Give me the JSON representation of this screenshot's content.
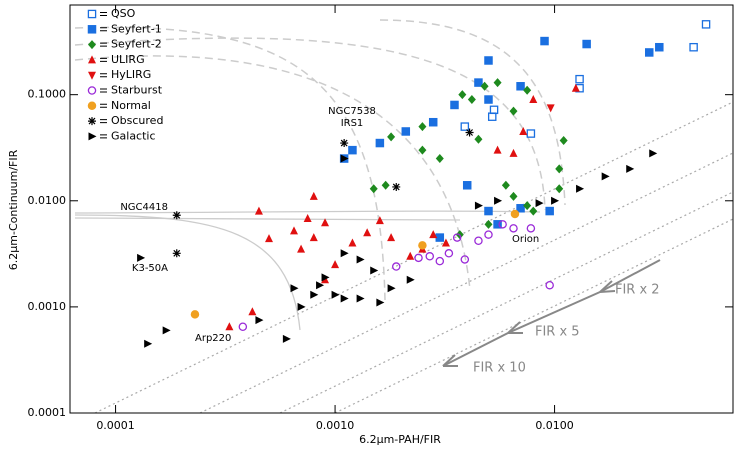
{
  "chart_data": {
    "type": "scatter",
    "xlabel": "6.2μm-PAH/FIR",
    "ylabel": "6.2μm-Continuum/FIR",
    "xlog": true,
    "ylog": true,
    "xlim": [
      6.2e-05,
      0.065
    ],
    "ylim": [
      0.0001,
      0.7
    ],
    "xticks": [
      0.0001,
      {
        "value": 0.001,
        "label": "0.0010"
      },
      {
        "value": 0.01,
        "label": "0.0100"
      }
    ],
    "yticks": [
      0.0001,
      {
        "value": 0.001,
        "label": "0.0010"
      },
      {
        "value": 0.01,
        "label": "0.0100"
      },
      {
        "value": 0.1,
        "label": "0.1000"
      }
    ],
    "annotations": [
      "NGC7538",
      "IRS1",
      "NGC4418",
      "K3-50A",
      "Arp220",
      "Orion",
      "FIR x 2",
      "FIR x 5",
      "FIR x 10"
    ],
    "series": [
      {
        "name": "QSO",
        "color": "#1a6fe0",
        "marker": "square-open",
        "x": [
          0.049,
          0.043,
          0.013,
          0.013,
          0.0053,
          0.0052,
          0.0078,
          0.0039
        ],
        "y": [
          0.46,
          0.28,
          0.14,
          0.115,
          0.072,
          0.062,
          0.043,
          0.05
        ]
      },
      {
        "name": "Seyfert-1",
        "color": "#1a6fe0",
        "marker": "square",
        "x": [
          0.03,
          0.027,
          0.014,
          0.009,
          0.005,
          0.0045,
          0.007,
          0.005,
          0.0035,
          0.0028,
          0.0021,
          0.0016,
          0.0012,
          0.0011,
          0.004,
          0.007,
          0.0095,
          0.005,
          0.003,
          0.0055
        ],
        "y": [
          0.28,
          0.25,
          0.3,
          0.32,
          0.21,
          0.13,
          0.12,
          0.09,
          0.08,
          0.055,
          0.045,
          0.035,
          0.03,
          0.025,
          0.014,
          0.0085,
          0.008,
          0.008,
          0.0045,
          0.006
        ]
      },
      {
        "name": "Seyfert-2",
        "color": "#1e8a1e",
        "marker": "diamond",
        "x": [
          0.0055,
          0.0048,
          0.0042,
          0.0038,
          0.0075,
          0.0065,
          0.011,
          0.0025,
          0.0018,
          0.0025,
          0.003,
          0.0045,
          0.0015,
          0.0017,
          0.006,
          0.0065,
          0.0105,
          0.0105,
          0.008,
          0.0075,
          0.005,
          0.0037
        ],
        "y": [
          0.13,
          0.12,
          0.09,
          0.1,
          0.11,
          0.07,
          0.037,
          0.05,
          0.04,
          0.03,
          0.025,
          0.038,
          0.013,
          0.014,
          0.014,
          0.011,
          0.02,
          0.013,
          0.008,
          0.009,
          0.006,
          0.0048
        ]
      },
      {
        "name": "ULIRG",
        "color": "#e01010",
        "marker": "triangle-up",
        "x": [
          0.0125,
          0.008,
          0.0072,
          0.0065,
          0.0055,
          0.0008,
          0.0008,
          0.00045,
          0.0005,
          0.00075,
          0.0009,
          0.00065,
          0.0007,
          0.001,
          0.0012,
          0.0014,
          0.0016,
          0.0018,
          0.0025,
          0.0028,
          0.0032,
          0.0022,
          0.0009,
          0.00033,
          0.00042
        ],
        "y": [
          0.115,
          0.09,
          0.045,
          0.028,
          0.03,
          0.011,
          0.0045,
          0.008,
          0.0044,
          0.0068,
          0.0062,
          0.0052,
          0.0035,
          0.0025,
          0.004,
          0.005,
          0.0065,
          0.0045,
          0.0035,
          0.0048,
          0.004,
          0.003,
          0.0018,
          0.00065,
          0.0009
        ]
      },
      {
        "name": "HyLIRG",
        "color": "#e01010",
        "marker": "triangle-down",
        "x": [
          0.0096
        ],
        "y": [
          0.075
        ]
      },
      {
        "name": "Starburst",
        "color": "#9a2ad8",
        "marker": "circle-open",
        "x": [
          0.0095,
          0.0078,
          0.005,
          0.0045,
          0.0036,
          0.0033,
          0.003,
          0.0027,
          0.0024,
          0.0039,
          0.0065,
          0.0058,
          0.0019,
          0.00038
        ],
        "y": [
          0.0016,
          0.0055,
          0.0048,
          0.0042,
          0.0045,
          0.0032,
          0.0027,
          0.003,
          0.0029,
          0.0028,
          0.0055,
          0.006,
          0.0024,
          0.00065
        ]
      },
      {
        "name": "Normal",
        "color": "#f0a020",
        "marker": "circle",
        "x": [
          0.00023,
          0.0025,
          0.0066
        ],
        "y": [
          0.00085,
          0.0038,
          0.0075
        ]
      },
      {
        "name": "Obscured",
        "color": "#000000",
        "marker": "asterisk",
        "x": [
          0.0011,
          0.0019,
          0.0041,
          0.00019,
          0.00019
        ],
        "y": [
          0.035,
          0.0135,
          0.044,
          0.0073,
          0.0032
        ]
      },
      {
        "name": "Galactic",
        "color": "#000000",
        "marker": "triangle-right",
        "x": [
          0.00014,
          0.00017,
          0.00013,
          0.00045,
          0.0006,
          0.0007,
          0.0008,
          0.00065,
          0.00085,
          0.001,
          0.0011,
          0.0013,
          0.0016,
          0.0018,
          0.0022,
          0.0011,
          0.0013,
          0.0015,
          0.0009,
          0.0045,
          0.0055,
          0.0085,
          0.01,
          0.013,
          0.017,
          0.022,
          0.028,
          0.0011
        ],
        "y": [
          0.00045,
          0.0006,
          0.0029,
          0.00075,
          0.0005,
          0.001,
          0.0013,
          0.0015,
          0.0016,
          0.0013,
          0.0012,
          0.0012,
          0.0011,
          0.0015,
          0.0018,
          0.0032,
          0.0028,
          0.0022,
          0.0019,
          0.009,
          0.01,
          0.0095,
          0.01,
          0.013,
          0.017,
          0.02,
          0.028,
          0.025
        ]
      }
    ]
  }
}
